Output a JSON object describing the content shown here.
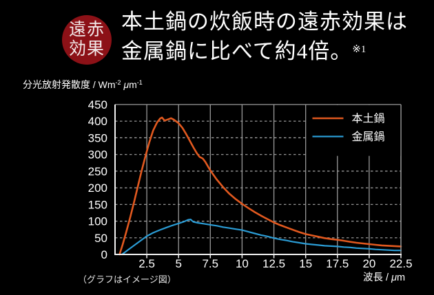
{
  "badge": {
    "line1": "遠赤",
    "line2": "効果"
  },
  "title": {
    "line1": "本土鍋の炊飯時の遠赤効果は",
    "line2": "金属鍋に比べて約4倍。",
    "footnote": "※1"
  },
  "y_axis_unit": {
    "p1": "分光放射発散度 / Wm",
    "sup1": "-2",
    "mu": " μ",
    "p2": "m",
    "sup2": "-1"
  },
  "x_axis_label": {
    "p1": "波長 / ",
    "mu": "μ",
    "p2": "m"
  },
  "image_note": "（グラフはイメージ図）",
  "colors": {
    "background": "#000000",
    "badge_bg": "#8c1117",
    "grid": "#9a9a9a",
    "grid_dashed": "#a8a8a8",
    "axis": "#f2f2f2",
    "text": "#ffffff"
  },
  "chart_data": {
    "type": "line",
    "title": "",
    "xlabel": "波長 / μm",
    "ylabel": "分光放射発散度 / Wm-2 μm-1",
    "xlim": [
      0,
      22.5
    ],
    "ylim": [
      0,
      450
    ],
    "x_ticks": [
      "2.5",
      "5",
      "7.5",
      "10",
      "12.5",
      "15",
      "17.5",
      "20",
      "22.5"
    ],
    "x_tick_values": [
      2.5,
      5,
      7.5,
      10,
      12.5,
      15,
      17.5,
      20,
      22.5
    ],
    "y_ticks": [
      "0",
      "50",
      "100",
      "150",
      "200",
      "250",
      "300",
      "350",
      "400",
      "450"
    ],
    "y_tick_values": [
      0,
      50,
      100,
      150,
      200,
      250,
      300,
      350,
      400,
      450
    ],
    "grid": {
      "horizontal": "dashed",
      "vertical": "solid"
    },
    "legend_position": "top-right",
    "series": [
      {
        "name": "本土鍋",
        "color": "#e2591f",
        "points": [
          [
            0.35,
            0
          ],
          [
            0.6,
            30
          ],
          [
            0.9,
            70
          ],
          [
            1.2,
            112
          ],
          [
            1.5,
            158
          ],
          [
            1.8,
            205
          ],
          [
            2.1,
            252
          ],
          [
            2.4,
            296
          ],
          [
            2.7,
            337
          ],
          [
            3.0,
            372
          ],
          [
            3.3,
            396
          ],
          [
            3.55,
            408
          ],
          [
            3.7,
            411
          ],
          [
            3.9,
            402
          ],
          [
            4.15,
            405
          ],
          [
            4.4,
            409
          ],
          [
            4.65,
            404
          ],
          [
            5.0,
            394
          ],
          [
            5.3,
            380
          ],
          [
            5.6,
            361
          ],
          [
            5.9,
            340
          ],
          [
            6.2,
            319
          ],
          [
            6.45,
            303
          ],
          [
            6.65,
            293
          ],
          [
            6.9,
            288
          ],
          [
            7.1,
            278
          ],
          [
            7.5,
            252
          ],
          [
            8.0,
            225
          ],
          [
            8.5,
            202
          ],
          [
            9.0,
            182
          ],
          [
            9.5,
            166
          ],
          [
            10.0,
            152
          ],
          [
            10.5,
            139
          ],
          [
            11.0,
            127
          ],
          [
            11.5,
            116
          ],
          [
            12.0,
            106
          ],
          [
            12.5,
            96
          ],
          [
            13.0,
            88
          ],
          [
            13.5,
            81
          ],
          [
            14.0,
            74
          ],
          [
            14.5,
            67
          ],
          [
            15.0,
            61
          ],
          [
            15.5,
            57
          ],
          [
            16.0,
            53
          ],
          [
            16.5,
            49
          ],
          [
            17.0,
            46
          ],
          [
            17.5,
            44
          ],
          [
            18.0,
            41
          ],
          [
            18.5,
            38
          ],
          [
            19.0,
            35
          ],
          [
            19.5,
            33
          ],
          [
            20.0,
            31
          ],
          [
            20.5,
            29
          ],
          [
            21.0,
            27
          ],
          [
            21.5,
            26
          ],
          [
            22.0,
            25
          ],
          [
            22.5,
            24
          ]
        ]
      },
      {
        "name": "金属鍋",
        "color": "#2b9dd6",
        "points": [
          [
            0.55,
            0
          ],
          [
            1.0,
            13
          ],
          [
            1.5,
            27
          ],
          [
            2.0,
            41
          ],
          [
            2.5,
            55
          ],
          [
            3.0,
            65
          ],
          [
            3.5,
            73
          ],
          [
            4.0,
            80
          ],
          [
            4.5,
            87
          ],
          [
            5.0,
            93
          ],
          [
            5.4,
            98
          ],
          [
            5.75,
            104
          ],
          [
            5.95,
            105
          ],
          [
            6.15,
            98
          ],
          [
            6.5,
            95
          ],
          [
            7.0,
            92
          ],
          [
            7.5,
            89
          ],
          [
            8.0,
            86
          ],
          [
            8.5,
            82
          ],
          [
            9.0,
            79
          ],
          [
            9.5,
            76
          ],
          [
            10.0,
            73
          ],
          [
            10.5,
            68
          ],
          [
            11.0,
            63
          ],
          [
            11.5,
            58
          ],
          [
            12.0,
            54
          ],
          [
            12.5,
            49
          ],
          [
            13.0,
            45
          ],
          [
            13.5,
            42
          ],
          [
            14.0,
            38
          ],
          [
            14.5,
            35
          ],
          [
            15.0,
            32
          ],
          [
            15.5,
            30
          ],
          [
            16.0,
            28
          ],
          [
            16.5,
            26
          ],
          [
            17.0,
            25
          ],
          [
            17.5,
            24
          ],
          [
            18.0,
            22
          ],
          [
            18.5,
            21
          ],
          [
            19.0,
            19
          ],
          [
            19.5,
            18
          ],
          [
            20.0,
            17
          ],
          [
            20.5,
            15
          ],
          [
            21.0,
            14
          ],
          [
            21.5,
            13
          ],
          [
            22.0,
            12
          ],
          [
            22.5,
            12
          ]
        ]
      }
    ]
  }
}
